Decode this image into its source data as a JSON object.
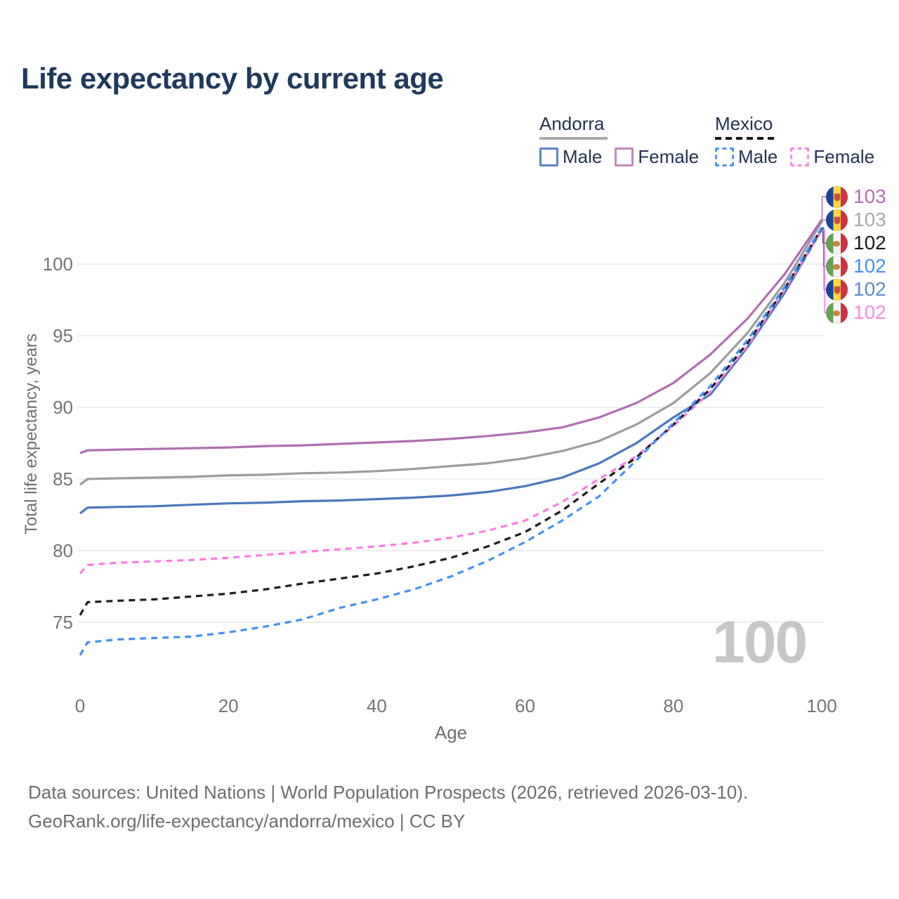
{
  "title": "Life expectancy by current age",
  "legend": {
    "groups": [
      {
        "country": "Andorra",
        "line_style": "solid",
        "rule_color": "#a9a9a9",
        "items": [
          {
            "label": "Male",
            "color": "#5b84c4"
          },
          {
            "label": "Female",
            "color": "#c289bd"
          }
        ]
      },
      {
        "country": "Mexico",
        "line_style": "dashed",
        "rule_color": "#151515",
        "items": [
          {
            "label": "Male",
            "color": "#4f93f7"
          },
          {
            "label": "Female",
            "color": "#fb8ae6"
          }
        ]
      }
    ]
  },
  "watermark": "100",
  "footer": {
    "line1": "Data sources: United Nations | World Population Prospects (2026, retrieved 2026-03-10).",
    "line2": "GeoRank.org/life-expectancy/andorra/mexico | CC BY"
  },
  "end_labels": [
    {
      "value": "103",
      "flag": "andorra",
      "color": "#b16eb1",
      "series": 1
    },
    {
      "value": "103",
      "flag": "andorra",
      "color": "#a9a9a9",
      "series": 0
    },
    {
      "value": "102",
      "flag": "mexico",
      "color": "#1c1c1c",
      "series": 4
    },
    {
      "value": "102",
      "flag": "mexico",
      "color": "#4590f5",
      "series": 5
    },
    {
      "value": "102",
      "flag": "andorra",
      "color": "#5f8bcb",
      "series": 2
    },
    {
      "value": "102",
      "flag": "mexico",
      "color": "#fb8ae6",
      "series": 3
    }
  ],
  "chart_data": {
    "type": "line",
    "title": "Life expectancy by current age",
    "xlabel": "Age",
    "ylabel": "Total life expectancy, years",
    "xlim": [
      0,
      100
    ],
    "ylim": [
      72,
      104
    ],
    "xticks": [
      0,
      20,
      40,
      60,
      80,
      100
    ],
    "yticks": [
      75,
      80,
      85,
      90,
      95,
      100
    ],
    "grid": "horizontal-only",
    "legend_position": "top-right",
    "x": [
      0,
      1,
      5,
      10,
      15,
      20,
      25,
      30,
      35,
      40,
      45,
      50,
      55,
      60,
      65,
      70,
      75,
      80,
      85,
      90,
      95,
      100
    ],
    "series": [
      {
        "id": "andorra-both",
        "name": "Andorra (both sexes)",
        "color": "#9c9c9c",
        "dashed": false,
        "values": [
          84.6,
          85.0,
          85.05,
          85.1,
          85.15,
          85.25,
          85.3,
          85.4,
          85.45,
          85.55,
          85.7,
          85.9,
          86.1,
          86.45,
          86.95,
          87.65,
          88.8,
          90.3,
          92.4,
          95.2,
          98.7,
          102.95
        ]
      },
      {
        "id": "andorra-female",
        "name": "Andorra Female",
        "color": "#b16eb1",
        "dashed": false,
        "values": [
          86.8,
          87.0,
          87.05,
          87.1,
          87.15,
          87.2,
          87.3,
          87.35,
          87.45,
          87.55,
          87.65,
          87.8,
          88.0,
          88.25,
          88.6,
          89.3,
          90.3,
          91.7,
          93.7,
          96.2,
          99.3,
          103.1
        ]
      },
      {
        "id": "andorra-male",
        "name": "Andorra Male",
        "color": "#4a77bd",
        "dashed": false,
        "values": [
          82.6,
          83.0,
          83.05,
          83.1,
          83.2,
          83.3,
          83.35,
          83.45,
          83.5,
          83.6,
          83.7,
          83.85,
          84.1,
          84.5,
          85.1,
          86.1,
          87.5,
          89.3,
          90.9,
          94.2,
          98.0,
          102.4
        ]
      },
      {
        "id": "mexico-female",
        "name": "Mexico Female",
        "color": "#fb7de4",
        "dashed": true,
        "values": [
          78.4,
          79.0,
          79.15,
          79.25,
          79.35,
          79.5,
          79.7,
          79.9,
          80.1,
          80.3,
          80.55,
          80.9,
          81.4,
          82.1,
          83.4,
          85.0,
          86.6,
          88.7,
          91.1,
          94.3,
          98.2,
          102.35
        ]
      },
      {
        "id": "mexico-both",
        "name": "Mexico (both sexes)",
        "color": "#1c1c1c",
        "dashed": true,
        "values": [
          75.5,
          76.4,
          76.5,
          76.6,
          76.8,
          77.0,
          77.3,
          77.7,
          78.05,
          78.4,
          78.9,
          79.5,
          80.3,
          81.3,
          82.8,
          84.7,
          86.5,
          88.8,
          91.3,
          94.5,
          98.3,
          102.5
        ]
      },
      {
        "id": "mexico-male",
        "name": "Mexico Male",
        "color": "#4590f5",
        "dashed": true,
        "values": [
          72.7,
          73.6,
          73.8,
          73.9,
          74.0,
          74.3,
          74.7,
          75.2,
          76.0,
          76.6,
          77.3,
          78.2,
          79.3,
          80.6,
          82.1,
          83.8,
          86.3,
          88.9,
          91.5,
          94.7,
          98.4,
          102.55
        ]
      }
    ]
  }
}
